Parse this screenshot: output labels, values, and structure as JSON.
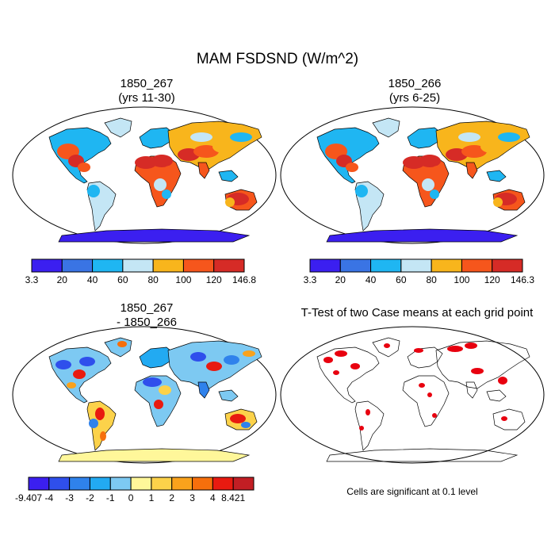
{
  "main_title": "MAM FSDSND (W/m^2)",
  "panels": {
    "p1": {
      "line1": "1850_267",
      "line2": "(yrs 11-30)"
    },
    "p2": {
      "line1": "1850_266",
      "line2": "(yrs 6-25)"
    },
    "p3": {
      "line1": "1850_267",
      "line2": "- 1850_266"
    },
    "p4": {
      "line1": "T-Test of two Case means at each grid point"
    }
  },
  "colorbars": {
    "cb1": {
      "colors": [
        "#3b1ff0",
        "#3a74e4",
        "#1fb6f2",
        "#c4e6f5",
        "#f8b51c",
        "#f6561c",
        "#d62b26"
      ],
      "labels": [
        "3.3",
        "20",
        "40",
        "60",
        "80",
        "100",
        "120",
        "146.8"
      ]
    },
    "cb2": {
      "colors": [
        "#3b1ff0",
        "#3a74e4",
        "#1fb6f2",
        "#c4e6f5",
        "#f8b51c",
        "#f6561c",
        "#d62b26"
      ],
      "labels": [
        "3.3",
        "20",
        "40",
        "60",
        "80",
        "100",
        "120",
        "146.3"
      ]
    },
    "cb3": {
      "colors": [
        "#3b1ff0",
        "#2f4fec",
        "#2f82ec",
        "#22aaf2",
        "#7dc9f2",
        "#fff79a",
        "#fcd24a",
        "#f9a21c",
        "#f66f0c",
        "#e81a10",
        "#c21e24"
      ],
      "labels": [
        "-9.407",
        "-4",
        "-3",
        "-2",
        "-1",
        "0",
        "1",
        "2",
        "3",
        "4",
        "8.421"
      ]
    }
  },
  "note": "Cells are significant at 0.1 level",
  "map_colors": {
    "hot": "#f6561c",
    "warm": "#f8b51c",
    "mid": "#c4e6f5",
    "cool": "#1fb6f2",
    "cold": "#3a74e4",
    "coldest": "#3b1ff0",
    "darkred": "#d62b26",
    "sig": "#e8000f"
  },
  "icons": {
    "map": "world-map"
  }
}
